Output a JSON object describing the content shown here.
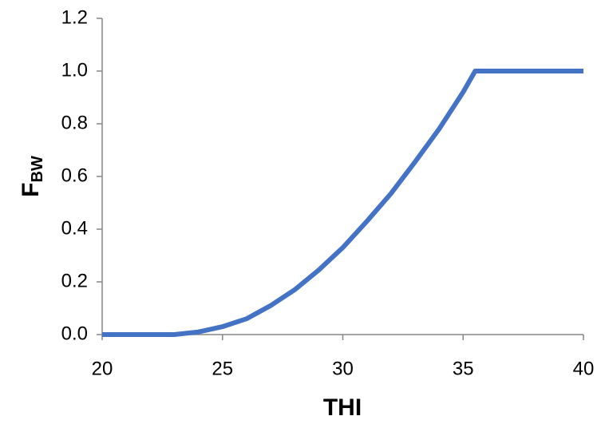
{
  "chart_data": {
    "type": "line",
    "xlabel": "THI",
    "ylabel": "F",
    "ylabel_subscript": "BW",
    "x": [
      20,
      21,
      22,
      23,
      24,
      25,
      26,
      27,
      28,
      29,
      30,
      31,
      32,
      33,
      34,
      35,
      35.5,
      36,
      37,
      38,
      39,
      40
    ],
    "series": [
      {
        "color": "#4472c4",
        "values": [
          0,
          0,
          0,
          0,
          0.01,
          0.03,
          0.06,
          0.11,
          0.17,
          0.245,
          0.33,
          0.43,
          0.535,
          0.655,
          0.78,
          0.92,
          1.0,
          1.0,
          1.0,
          1.0,
          1.0,
          1.0
        ]
      }
    ],
    "xlim": [
      20,
      40
    ],
    "xticks": [
      20,
      25,
      30,
      35,
      40
    ],
    "ylim": [
      0,
      1.2
    ],
    "yticks": [
      {
        "value": 0,
        "label": "0.0"
      },
      0.2,
      0.4,
      0.6,
      0.8,
      {
        "value": 1,
        "label": "1.0"
      },
      1.2
    ],
    "grid": false
  }
}
